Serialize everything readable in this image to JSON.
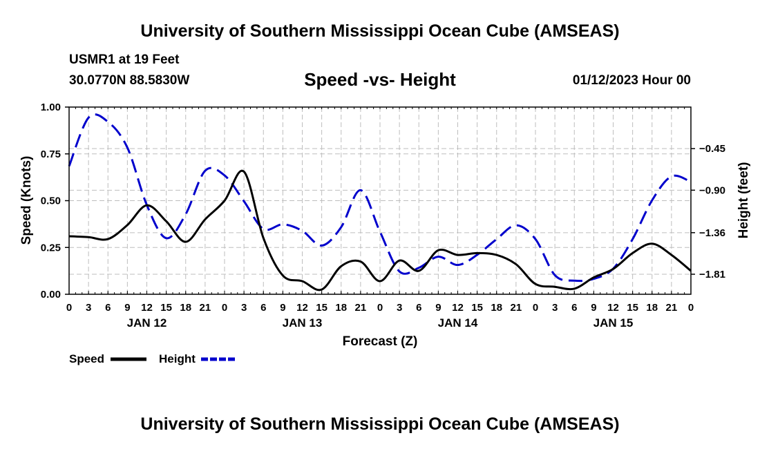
{
  "header": {
    "title": "University of Southern Mississippi Ocean Cube (AMSEAS)",
    "station": "USMR1 at 19 Feet",
    "location": "30.0770N  88.5830W",
    "datetime": "01/12/2023 Hour 00",
    "footer_title": "University of Southern Mississippi Ocean Cube (AMSEAS)"
  },
  "chart_data": {
    "type": "line",
    "title": "Speed -vs- Height",
    "xlabel": "Forecast (Z)",
    "ylabel": "Speed (Knots)",
    "y2label": "Height (feet)",
    "xlim": [
      0,
      96
    ],
    "ylim": [
      0,
      1.0
    ],
    "y2lim": [
      -2.027,
      0.0
    ],
    "x_tick_labels": [
      "0",
      "3",
      "6",
      "9",
      "12",
      "15",
      "18",
      "21",
      "0",
      "3",
      "6",
      "9",
      "12",
      "15",
      "18",
      "21",
      "0",
      "3",
      "6",
      "9",
      "12",
      "15",
      "18",
      "21",
      "0",
      "3",
      "6",
      "9",
      "12",
      "15",
      "18",
      "21",
      "0"
    ],
    "day_labels": [
      {
        "x": 12,
        "label": "JAN 12"
      },
      {
        "x": 36,
        "label": "JAN 13"
      },
      {
        "x": 60,
        "label": "JAN 14"
      },
      {
        "x": 84,
        "label": "JAN 15"
      }
    ],
    "y_ticks": [
      {
        "value": 0.0,
        "label": "0.00"
      },
      {
        "value": 0.25,
        "label": "0.25"
      },
      {
        "value": 0.5,
        "label": "0.50"
      },
      {
        "value": 0.75,
        "label": "0.75"
      },
      {
        "value": 1.0,
        "label": "1.00"
      }
    ],
    "y2_ticks": [
      {
        "value": -0.45,
        "label": "−0.45"
      },
      {
        "value": -0.9,
        "label": "−0.90"
      },
      {
        "value": -1.36,
        "label": "−1.36"
      },
      {
        "value": -1.81,
        "label": "−1.81"
      }
    ],
    "grid": true,
    "series": [
      {
        "name": "Speed",
        "axis": "left",
        "color": "#000000",
        "style": "solid",
        "points": [
          [
            0,
            0.31
          ],
          [
            3,
            0.305
          ],
          [
            6,
            0.295
          ],
          [
            9,
            0.37
          ],
          [
            12,
            0.475
          ],
          [
            15,
            0.39
          ],
          [
            18,
            0.28
          ],
          [
            21,
            0.4
          ],
          [
            24,
            0.5
          ],
          [
            27,
            0.655
          ],
          [
            30,
            0.3
          ],
          [
            33,
            0.1
          ],
          [
            36,
            0.07
          ],
          [
            39,
            0.025
          ],
          [
            42,
            0.15
          ],
          [
            45,
            0.175
          ],
          [
            48,
            0.07
          ],
          [
            51,
            0.18
          ],
          [
            54,
            0.125
          ],
          [
            57,
            0.235
          ],
          [
            60,
            0.21
          ],
          [
            63,
            0.22
          ],
          [
            66,
            0.21
          ],
          [
            69,
            0.16
          ],
          [
            72,
            0.055
          ],
          [
            75,
            0.04
          ],
          [
            78,
            0.03
          ],
          [
            81,
            0.09
          ],
          [
            84,
            0.135
          ],
          [
            87,
            0.22
          ],
          [
            90,
            0.27
          ],
          [
            93,
            0.21
          ],
          [
            96,
            0.125
          ]
        ]
      },
      {
        "name": "Height",
        "axis": "right",
        "color": "#0000cc",
        "style": "dashed",
        "points": [
          [
            0,
            -0.64
          ],
          [
            3,
            -0.115
          ],
          [
            6,
            -0.16
          ],
          [
            9,
            -0.44
          ],
          [
            12,
            -1.06
          ],
          [
            15,
            -1.42
          ],
          [
            18,
            -1.16
          ],
          [
            21,
            -0.69
          ],
          [
            24,
            -0.74
          ],
          [
            27,
            -1.02
          ],
          [
            30,
            -1.32
          ],
          [
            33,
            -1.27
          ],
          [
            36,
            -1.34
          ],
          [
            39,
            -1.5
          ],
          [
            42,
            -1.3
          ],
          [
            45,
            -0.9
          ],
          [
            48,
            -1.35
          ],
          [
            51,
            -1.78
          ],
          [
            54,
            -1.74
          ],
          [
            57,
            -1.62
          ],
          [
            60,
            -1.71
          ],
          [
            63,
            -1.6
          ],
          [
            66,
            -1.43
          ],
          [
            69,
            -1.28
          ],
          [
            72,
            -1.43
          ],
          [
            75,
            -1.82
          ],
          [
            78,
            -1.88
          ],
          [
            81,
            -1.86
          ],
          [
            84,
            -1.75
          ],
          [
            87,
            -1.43
          ],
          [
            90,
            -1.01
          ],
          [
            93,
            -0.75
          ],
          [
            96,
            -0.81
          ]
        ]
      }
    ],
    "legend": [
      {
        "label": "Speed",
        "color": "#000000",
        "style": "solid"
      },
      {
        "label": "Height",
        "color": "#0000cc",
        "style": "dashed"
      }
    ]
  }
}
